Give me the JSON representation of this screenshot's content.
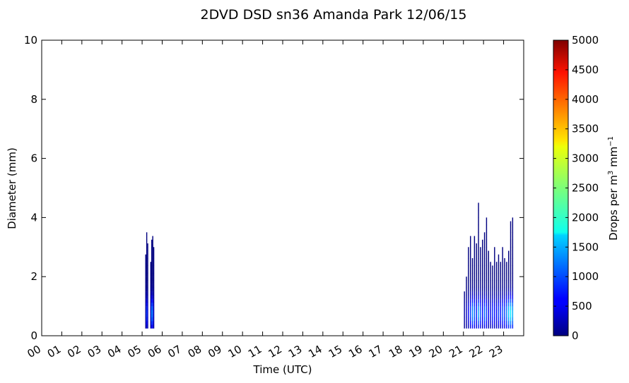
{
  "chart_data": {
    "type": "heatmap",
    "title": "2DVD DSD sn36 Amanda Park 12/06/15",
    "xlabel": "Time (UTC)",
    "ylabel": "Diameter (mm)",
    "x_ticks": [
      "00",
      "01",
      "02",
      "03",
      "04",
      "05",
      "06",
      "07",
      "08",
      "09",
      "10",
      "11",
      "12",
      "13",
      "14",
      "15",
      "16",
      "17",
      "18",
      "19",
      "20",
      "21",
      "22",
      "23"
    ],
    "xlim": [
      0,
      24
    ],
    "ylim": [
      0,
      10
    ],
    "y_ticks": [
      "0",
      "2",
      "4",
      "6",
      "8",
      "10"
    ],
    "colorbar": {
      "label_main": "Drops per m",
      "label_sup1": "3",
      "label_mid": " mm",
      "label_sup2": "−1",
      "range": [
        0,
        5000
      ],
      "ticks": [
        "0",
        "500",
        "1000",
        "1500",
        "2000",
        "2500",
        "3000",
        "3500",
        "4000",
        "4500",
        "5000"
      ],
      "colormap": "jet"
    },
    "events": [
      {
        "start_hour": 5.15,
        "end_hour": 5.6,
        "columns": [
          {
            "hour": 5.18,
            "max_d": 2.7,
            "peak": 150
          },
          {
            "hour": 5.23,
            "max_d": 3.45,
            "peak": 900
          },
          {
            "hour": 5.28,
            "max_d": 3.1,
            "peak": 400
          },
          {
            "hour": 5.43,
            "max_d": 2.5,
            "peak": 300
          },
          {
            "hour": 5.48,
            "max_d": 3.2,
            "peak": 1300
          },
          {
            "hour": 5.53,
            "max_d": 3.3,
            "peak": 1000
          },
          {
            "hour": 5.58,
            "max_d": 2.9,
            "peak": 250
          }
        ]
      },
      {
        "start_hour": 21.0,
        "end_hour": 23.55,
        "columns": [
          {
            "hour": 21.05,
            "max_d": 1.5,
            "peak": 200
          },
          {
            "hour": 21.15,
            "max_d": 1.9,
            "peak": 300
          },
          {
            "hour": 21.25,
            "max_d": 2.9,
            "peak": 600
          },
          {
            "hour": 21.35,
            "max_d": 3.3,
            "peak": 900
          },
          {
            "hour": 21.45,
            "max_d": 2.6,
            "peak": 1300
          },
          {
            "hour": 21.55,
            "max_d": 3.3,
            "peak": 1100
          },
          {
            "hour": 21.65,
            "max_d": 3.1,
            "peak": 800
          },
          {
            "hour": 21.75,
            "max_d": 4.5,
            "peak": 1400
          },
          {
            "hour": 21.85,
            "max_d": 2.9,
            "peak": 1000
          },
          {
            "hour": 21.95,
            "max_d": 3.2,
            "peak": 700
          },
          {
            "hour": 22.05,
            "max_d": 3.5,
            "peak": 1100
          },
          {
            "hour": 22.15,
            "max_d": 3.9,
            "peak": 900
          },
          {
            "hour": 22.25,
            "max_d": 2.8,
            "peak": 600
          },
          {
            "hour": 22.35,
            "max_d": 2.5,
            "peak": 500
          },
          {
            "hour": 22.45,
            "max_d": 2.3,
            "peak": 800
          },
          {
            "hour": 22.55,
            "max_d": 2.9,
            "peak": 700
          },
          {
            "hour": 22.65,
            "max_d": 2.4,
            "peak": 600
          },
          {
            "hour": 22.75,
            "max_d": 2.7,
            "peak": 900
          },
          {
            "hour": 22.85,
            "max_d": 2.5,
            "peak": 700
          },
          {
            "hour": 22.95,
            "max_d": 2.9,
            "peak": 1000
          },
          {
            "hour": 23.05,
            "max_d": 2.6,
            "peak": 900
          },
          {
            "hour": 23.15,
            "max_d": 2.4,
            "peak": 1200
          },
          {
            "hour": 23.25,
            "max_d": 2.8,
            "peak": 1600
          },
          {
            "hour": 23.35,
            "max_d": 3.8,
            "peak": 1800
          },
          {
            "hour": 23.45,
            "max_d": 3.9,
            "peak": 1500
          }
        ]
      }
    ]
  }
}
